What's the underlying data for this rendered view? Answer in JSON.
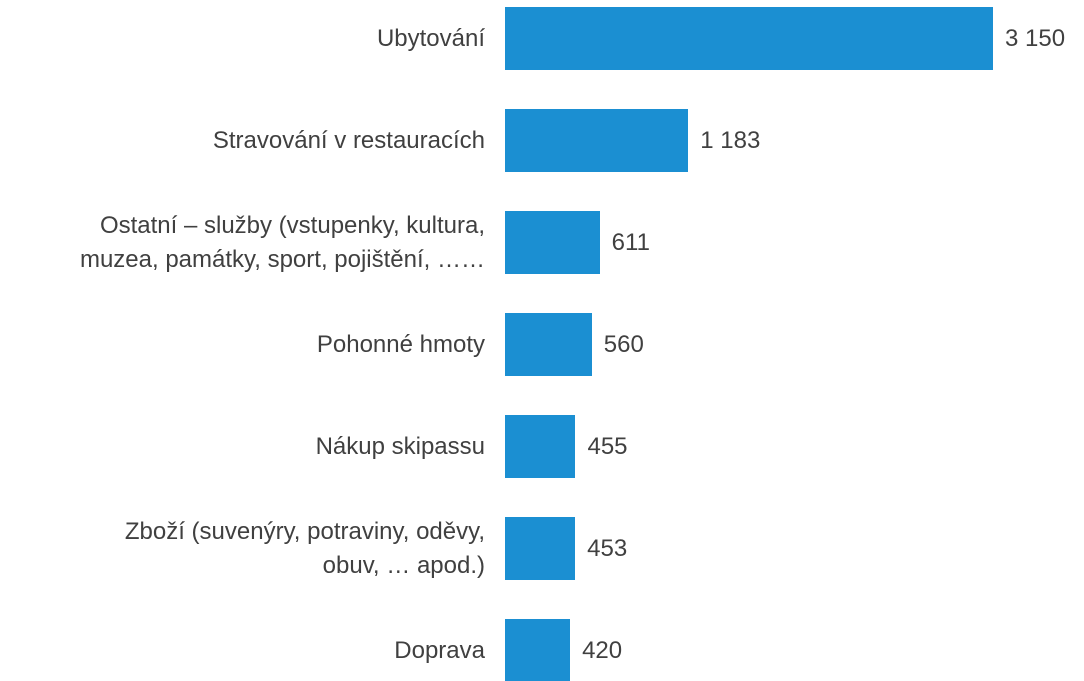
{
  "chart_data": {
    "type": "bar",
    "orientation": "horizontal",
    "categories": [
      "Ubytování",
      "Stravování v restauracích",
      "Ostatní – služby (vstupenky, kultura,\nmuzea, památky, sport, pojištění, ……",
      "Pohonné hmoty",
      "Nákup skipassu",
      "Zboží (suvenýry, potraviny, oděvy,\nobuv, … apod.)",
      "Doprava"
    ],
    "values": [
      3150,
      1183,
      611,
      560,
      455,
      453,
      420
    ],
    "value_labels": [
      "3 150",
      "1 183",
      "611",
      "560",
      "455",
      "453",
      "420"
    ],
    "color": "#1b8fd2"
  }
}
